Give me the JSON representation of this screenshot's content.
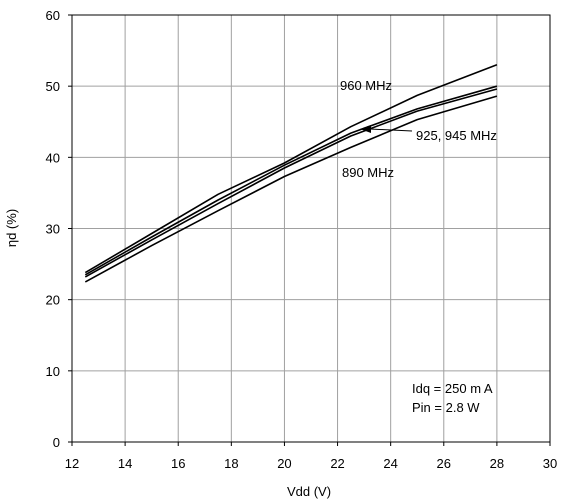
{
  "chart_data": {
    "type": "line",
    "xlabel": "Vdd (V)",
    "ylabel": "ηd (%)",
    "xlim": [
      12,
      30
    ],
    "ylim": [
      0,
      60
    ],
    "xticks": [
      12,
      14,
      16,
      18,
      20,
      22,
      24,
      26,
      28,
      30
    ],
    "yticks": [
      0,
      10,
      20,
      30,
      40,
      50,
      60
    ],
    "grid": true,
    "series": [
      {
        "name": "960 MHz",
        "x": [
          12.5,
          15,
          17.5,
          20,
          22.5,
          25,
          28
        ],
        "y": [
          23.8,
          29.3,
          34.8,
          39.2,
          44.3,
          48.7,
          53.0
        ]
      },
      {
        "name": "925 MHz",
        "x": [
          12.5,
          15,
          17.5,
          20,
          22.5,
          25,
          28
        ],
        "y": [
          23.5,
          28.8,
          34.0,
          38.9,
          43.4,
          46.8,
          50.0
        ]
      },
      {
        "name": "945 MHz",
        "x": [
          12.5,
          15,
          17.5,
          20,
          22.5,
          25,
          28
        ],
        "y": [
          23.2,
          28.4,
          33.5,
          38.5,
          43.0,
          46.5,
          49.6
        ]
      },
      {
        "name": "890 MHz",
        "x": [
          12.5,
          15,
          17.5,
          20,
          22.5,
          25,
          28
        ],
        "y": [
          22.5,
          27.6,
          32.5,
          37.3,
          41.4,
          45.3,
          48.6
        ]
      }
    ],
    "annotations": [
      {
        "text": "960 MHz"
      },
      {
        "text": "925, 945 MHz"
      },
      {
        "text": "890 MHz"
      },
      {
        "text": "Idq = 250 m A"
      },
      {
        "text": "Pin = 2.8 W"
      }
    ]
  }
}
